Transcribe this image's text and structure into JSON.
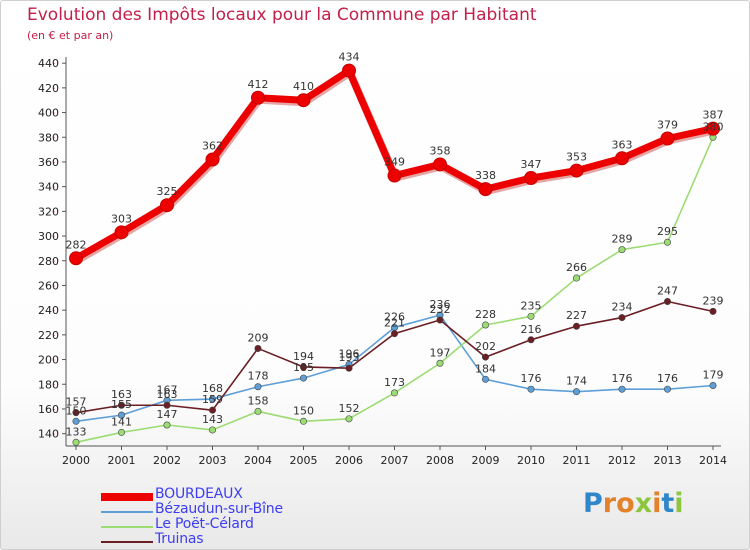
{
  "title": "Evolution des Impôts locaux pour la Commune par Habitant",
  "subtitle": "(en € et par an)",
  "brand": {
    "letters": [
      "P",
      "r",
      "o",
      "x",
      "i",
      "t",
      "i"
    ],
    "colors": [
      "#2f86c8",
      "#e3822a",
      "#e3822a",
      "#8cc63f",
      "#e3822a",
      "#2f86c8",
      "#8cc63f"
    ]
  },
  "chart_data": {
    "type": "line",
    "title": "Evolution des Impôts locaux pour la Commune par Habitant",
    "ylabel": "(en € et par an)",
    "xlabel": "",
    "ylim": [
      130,
      445
    ],
    "yticks": [
      140,
      160,
      180,
      200,
      220,
      240,
      260,
      280,
      300,
      320,
      340,
      360,
      380,
      400,
      420,
      440
    ],
    "x": [
      "2000",
      "2001",
      "2002",
      "2003",
      "2004",
      "2005",
      "2006",
      "2007",
      "2008",
      "2009",
      "2010",
      "2011",
      "2012",
      "2013",
      "2014"
    ],
    "grid": false,
    "legend_position": "bottom-left",
    "series": [
      {
        "name": "BOURDEAUX",
        "color": "#ec0000",
        "labels": true,
        "values": [
          282,
          303,
          325,
          362,
          412,
          410,
          434,
          349,
          358,
          338,
          347,
          353,
          363,
          379,
          387
        ]
      },
      {
        "name": "Bézaudun-sur-Bîne",
        "color": "#5d9fd6",
        "labels": true,
        "values": [
          150,
          155,
          167,
          168,
          178,
          185,
          196,
          226,
          236,
          184,
          176,
          174,
          176,
          176,
          179
        ]
      },
      {
        "name": "Le Poët-Célard",
        "color": "#9bdc73",
        "labels": true,
        "values": [
          133,
          141,
          147,
          143,
          158,
          150,
          152,
          173,
          197,
          228,
          235,
          266,
          289,
          295,
          380
        ]
      },
      {
        "name": "Truinas",
        "color": "#6b1f24",
        "labels": true,
        "values": [
          157,
          163,
          163,
          159,
          209,
          194,
          193,
          221,
          232,
          202,
          216,
          227,
          234,
          247,
          239
        ]
      }
    ]
  }
}
